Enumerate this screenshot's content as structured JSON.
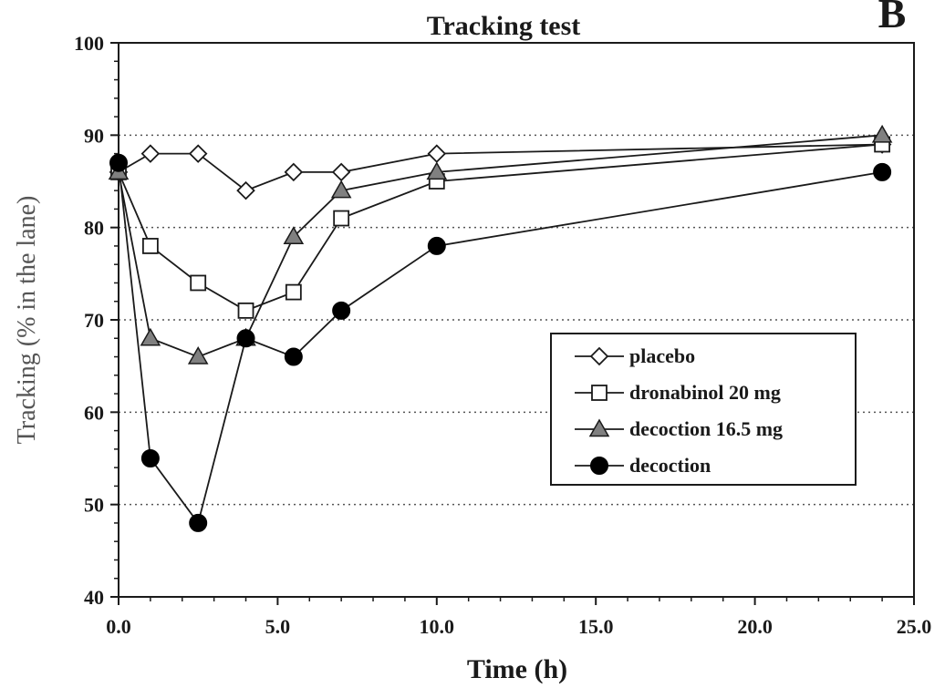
{
  "chart_data": {
    "type": "line",
    "title": "Tracking test",
    "panel_letter": "B",
    "xlabel": "Time (h)",
    "ylabel": "Tracking (% in the lane)",
    "xlim": [
      0,
      25
    ],
    "ylim": [
      40,
      100
    ],
    "x_ticks": [
      "0.0",
      "5.0",
      "10.0",
      "15.0",
      "20.0",
      "25.0"
    ],
    "x_tick_values": [
      0,
      5,
      10,
      15,
      20,
      25
    ],
    "y_ticks": [
      "40",
      "50",
      "60",
      "70",
      "80",
      "90",
      "100"
    ],
    "y_tick_values": [
      40,
      50,
      60,
      70,
      80,
      90,
      100
    ],
    "grid": "horizontal dotted",
    "legend_position": "bottom-right",
    "x": [
      0,
      1,
      2.5,
      4,
      5.5,
      7,
      10,
      24
    ],
    "series": [
      {
        "name": "placebo",
        "marker": "diamond-open",
        "values": [
          86,
          88,
          88,
          84,
          86,
          86,
          88,
          89
        ]
      },
      {
        "name": "dronabinol 20 mg",
        "marker": "square-open",
        "values": [
          86,
          78,
          74,
          71,
          73,
          81,
          85,
          89
        ]
      },
      {
        "name": "decoction 16.5 mg",
        "marker": "triangle-gray",
        "values": [
          86,
          68,
          66,
          68,
          79,
          84,
          86,
          90
        ]
      },
      {
        "name": "decoction",
        "marker": "circle-black",
        "values": [
          87,
          55,
          48,
          68,
          66,
          71,
          78,
          86
        ]
      }
    ]
  }
}
